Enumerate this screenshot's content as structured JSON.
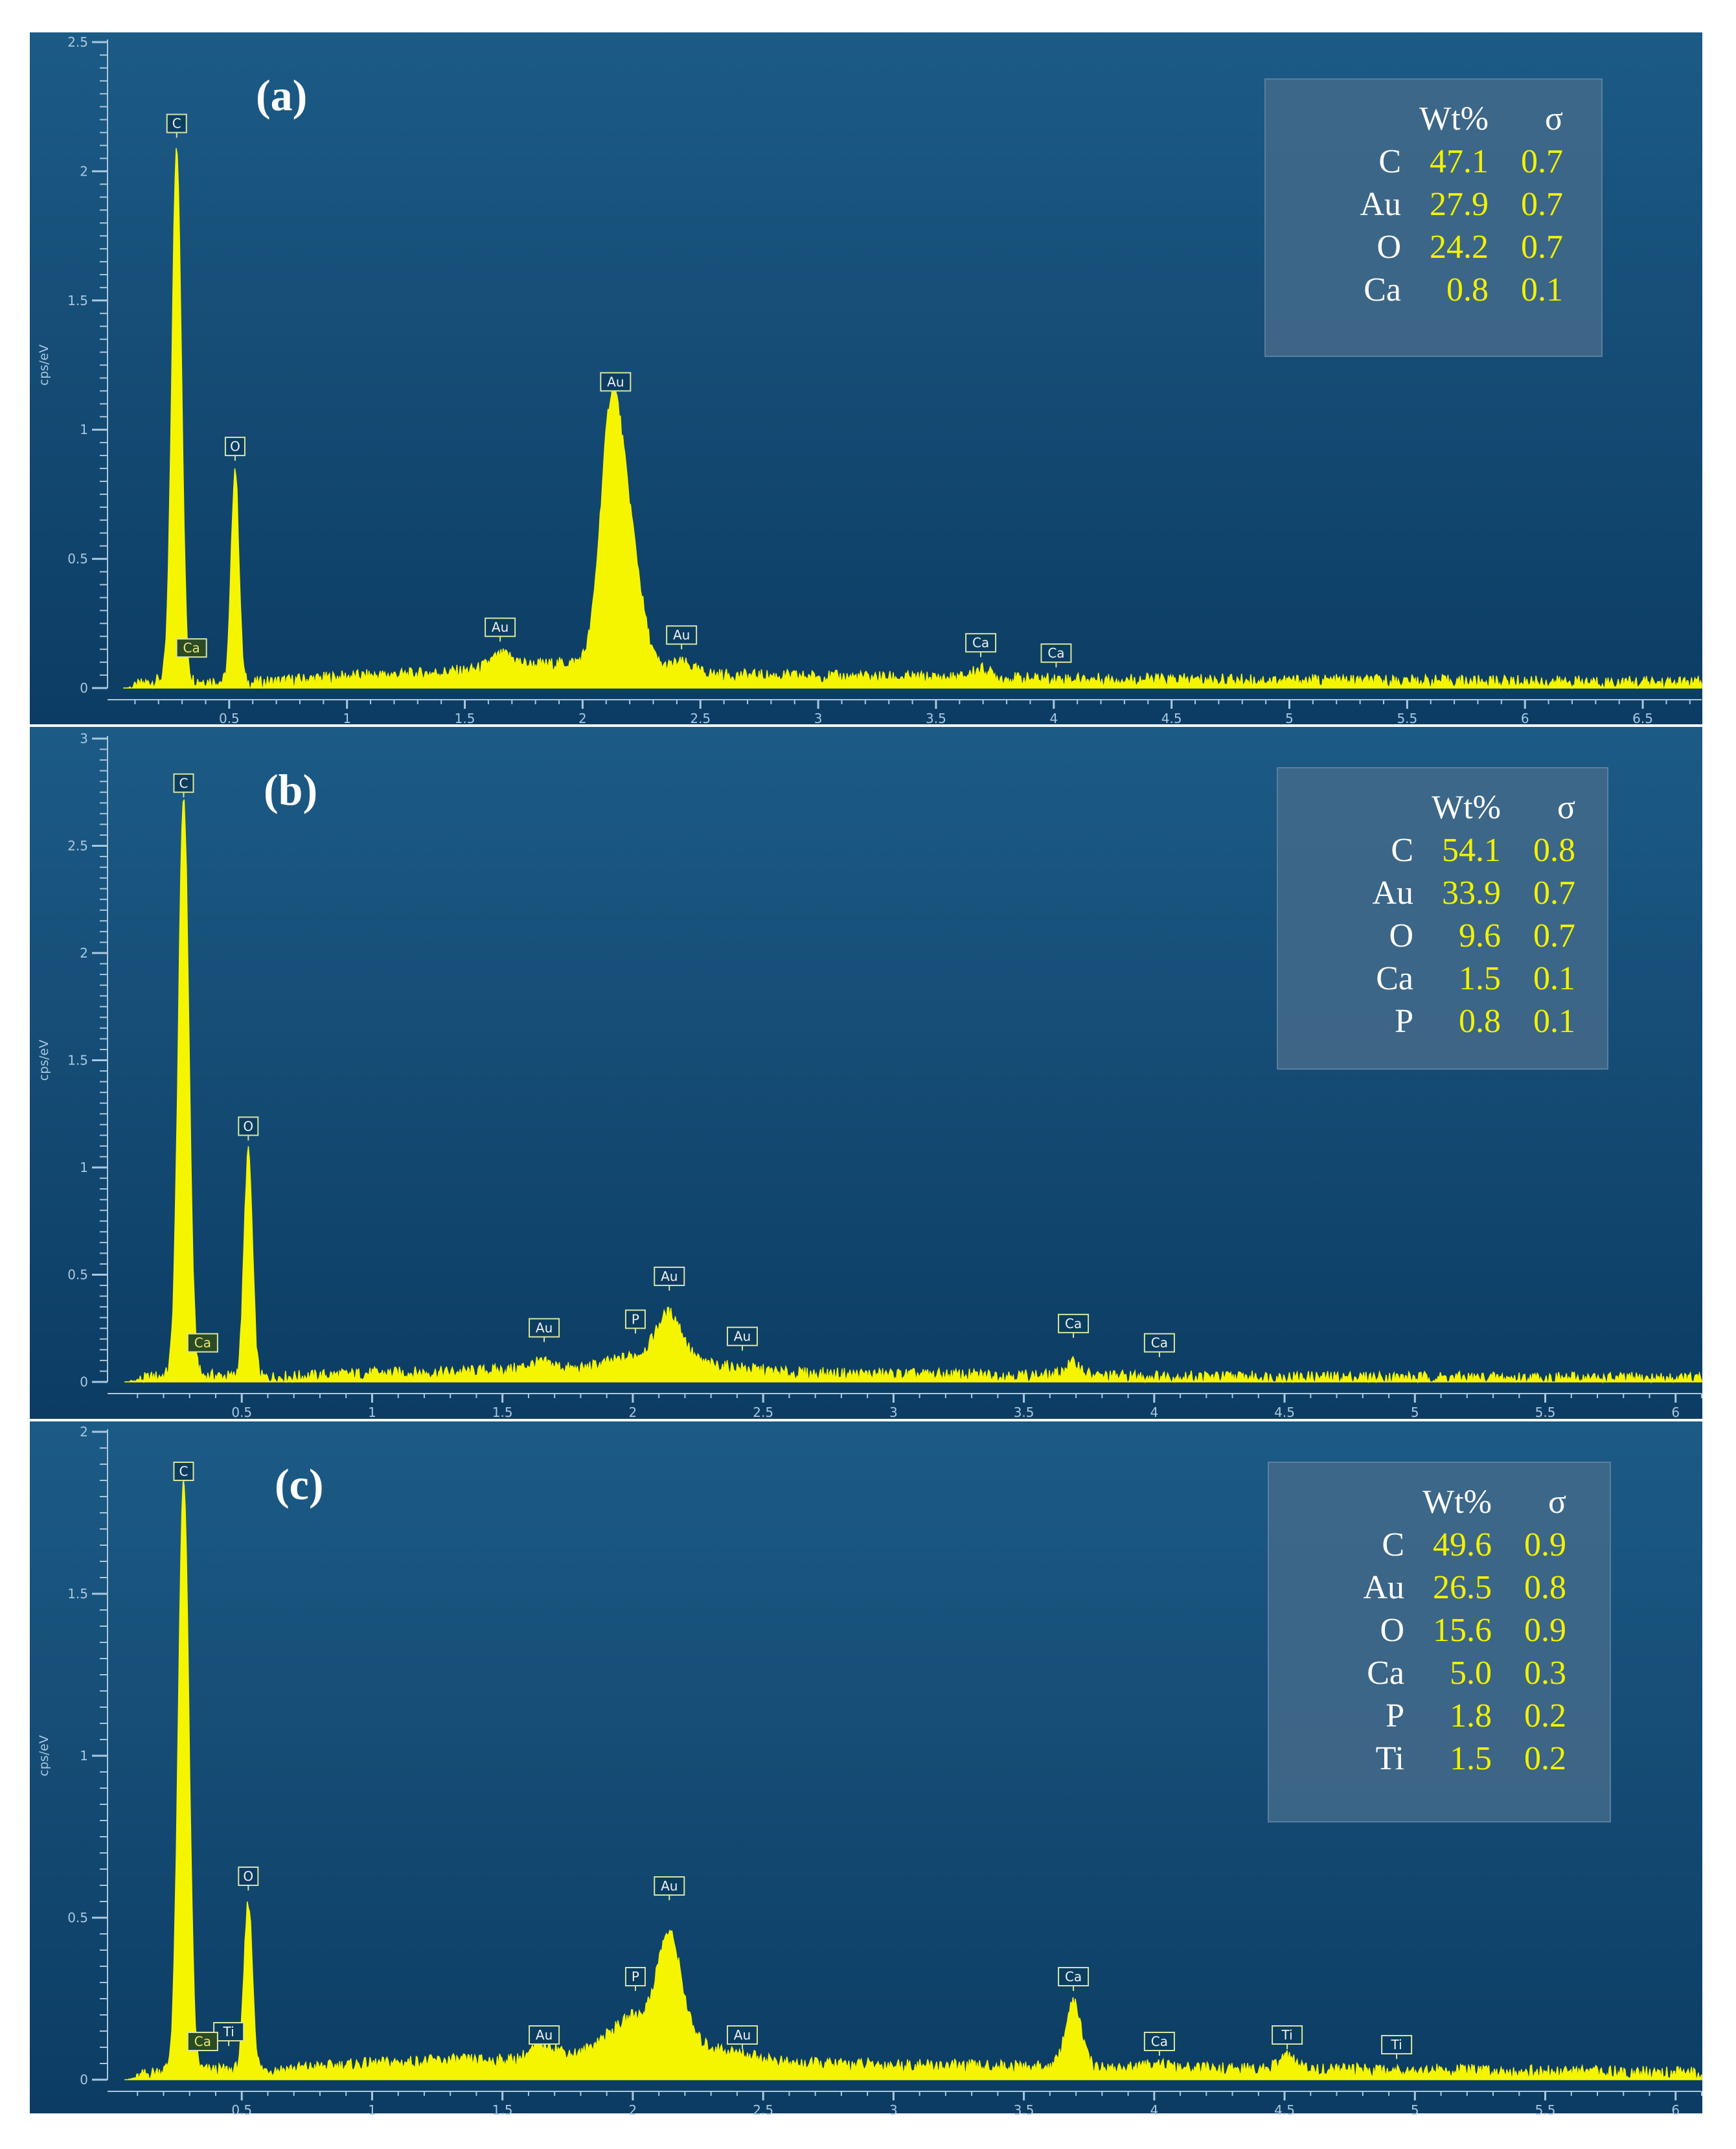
{
  "y_axis_label": "cps/eV",
  "legend_header": {
    "wt": "Wt%",
    "sigma": "σ"
  },
  "chart_data": [
    {
      "type": "line",
      "panel_label": "(a)",
      "xlim": [
        0,
        6.75
      ],
      "ylim": [
        0,
        2.5
      ],
      "x_ticks": [
        "0.5",
        "1",
        "1.5",
        "2",
        "2.5",
        "3",
        "3.5",
        "4",
        "4.5",
        "5",
        "5.5",
        "6",
        "6.5"
      ],
      "y_ticks": [
        "0",
        "0.5",
        "1",
        "1.5",
        "2",
        "2.5"
      ],
      "ylabel": "cps/eV",
      "baseline": [
        [
          0.05,
          0.0
        ],
        [
          0.2,
          0.03
        ],
        [
          0.35,
          0.03
        ],
        [
          0.6,
          0.02
        ],
        [
          1.0,
          0.045
        ],
        [
          1.3,
          0.055
        ],
        [
          1.55,
          0.07
        ],
        [
          1.8,
          0.09
        ],
        [
          2.0,
          0.1
        ],
        [
          2.3,
          0.08
        ],
        [
          2.6,
          0.05
        ],
        [
          3.0,
          0.045
        ],
        [
          3.5,
          0.04
        ],
        [
          4.0,
          0.035
        ],
        [
          5.0,
          0.03
        ],
        [
          6.0,
          0.025
        ],
        [
          6.75,
          0.02
        ]
      ],
      "peaks": [
        {
          "x": 0.277,
          "h": 2.07,
          "w": 0.02
        },
        {
          "x": 0.525,
          "h": 0.83,
          "w": 0.016
        },
        {
          "x": 1.66,
          "h": 0.05,
          "w": 0.05
        },
        {
          "x": 2.12,
          "h": 0.92,
          "w": 0.045
        },
        {
          "x": 2.2,
          "h": 0.45,
          "w": 0.05
        },
        {
          "x": 2.42,
          "h": 0.03,
          "w": 0.04
        },
        {
          "x": 3.69,
          "h": 0.035,
          "w": 0.04
        }
      ],
      "peak_labels": [
        {
          "text": "C",
          "x": 0.277,
          "y": 2.15,
          "type": "above"
        },
        {
          "text": "Ca",
          "x": 0.34,
          "y": 0.12,
          "type": "inline"
        },
        {
          "text": "O",
          "x": 0.525,
          "y": 0.9,
          "type": "above"
        },
        {
          "text": "Au",
          "x": 1.65,
          "y": 0.2,
          "type": "above"
        },
        {
          "text": "Au",
          "x": 2.14,
          "y": 1.15,
          "type": "above"
        },
        {
          "text": "Au",
          "x": 2.42,
          "y": 0.17,
          "type": "above"
        },
        {
          "text": "Ca",
          "x": 3.69,
          "y": 0.14,
          "type": "above"
        },
        {
          "text": "Ca",
          "x": 4.01,
          "y": 0.1,
          "type": "above"
        }
      ],
      "composition": [
        {
          "element": "C",
          "wt": "47.1",
          "sigma": "0.7"
        },
        {
          "element": "Au",
          "wt": "27.9",
          "sigma": "0.7"
        },
        {
          "element": "O",
          "wt": "24.2",
          "sigma": "0.7"
        },
        {
          "element": "Ca",
          "wt": "0.8",
          "sigma": "0.1"
        }
      ]
    },
    {
      "type": "line",
      "panel_label": "(b)",
      "xlim": [
        0,
        6.1
      ],
      "ylim": [
        0,
        3
      ],
      "x_ticks": [
        "0.5",
        "1",
        "1.5",
        "2",
        "2.5",
        "3",
        "3.5",
        "4",
        "4.5",
        "5",
        "5.5",
        "6"
      ],
      "y_ticks": [
        "0",
        "0.5",
        "1",
        "1.5",
        "2",
        "2.5",
        "3"
      ],
      "ylabel": "cps/eV",
      "baseline": [
        [
          0.05,
          0.0
        ],
        [
          0.2,
          0.03
        ],
        [
          0.35,
          0.03
        ],
        [
          0.6,
          0.02
        ],
        [
          1.0,
          0.04
        ],
        [
          1.3,
          0.045
        ],
        [
          1.6,
          0.06
        ],
        [
          1.8,
          0.06
        ],
        [
          2.0,
          0.12
        ],
        [
          2.3,
          0.08
        ],
        [
          2.6,
          0.04
        ],
        [
          3.0,
          0.035
        ],
        [
          3.5,
          0.03
        ],
        [
          4.0,
          0.025
        ],
        [
          5.0,
          0.02
        ],
        [
          6.1,
          0.015
        ]
      ],
      "peaks": [
        {
          "x": 0.277,
          "h": 2.7,
          "w": 0.02
        },
        {
          "x": 0.525,
          "h": 1.05,
          "w": 0.016
        },
        {
          "x": 1.65,
          "h": 0.03,
          "w": 0.05
        },
        {
          "x": 2.14,
          "h": 0.22,
          "w": 0.05
        },
        {
          "x": 3.69,
          "h": 0.06,
          "w": 0.03
        }
      ],
      "peak_labels": [
        {
          "text": "C",
          "x": 0.277,
          "y": 2.75,
          "type": "above"
        },
        {
          "text": "Ca",
          "x": 0.35,
          "y": 0.14,
          "type": "inline"
        },
        {
          "text": "O",
          "x": 0.525,
          "y": 1.15,
          "type": "above"
        },
        {
          "text": "Au",
          "x": 1.66,
          "y": 0.21,
          "type": "above"
        },
        {
          "text": "P",
          "x": 2.01,
          "y": 0.25,
          "type": "above"
        },
        {
          "text": "Au",
          "x": 2.14,
          "y": 0.45,
          "type": "above"
        },
        {
          "text": "Au",
          "x": 2.42,
          "y": 0.17,
          "type": "above"
        },
        {
          "text": "Ca",
          "x": 3.69,
          "y": 0.23,
          "type": "above"
        },
        {
          "text": "Ca",
          "x": 4.02,
          "y": 0.14,
          "type": "above"
        }
      ],
      "composition": [
        {
          "element": "C",
          "wt": "54.1",
          "sigma": "0.8"
        },
        {
          "element": "Au",
          "wt": "33.9",
          "sigma": "0.7"
        },
        {
          "element": "O",
          "wt": "9.6",
          "sigma": "0.7"
        },
        {
          "element": "Ca",
          "wt": "1.5",
          "sigma": "0.1"
        },
        {
          "element": "P",
          "wt": "0.8",
          "sigma": "0.1"
        }
      ]
    },
    {
      "type": "line",
      "panel_label": "(c)",
      "xlim": [
        0,
        6.1
      ],
      "ylim": [
        0,
        2
      ],
      "x_ticks": [
        "0.5",
        "1",
        "1.5",
        "2",
        "2.5",
        "3",
        "3.5",
        "4",
        "4.5",
        "5",
        "5.5",
        "6"
      ],
      "y_ticks": [
        "0",
        "0.5",
        "1",
        "1.5",
        "2"
      ],
      "ylabel": "cps/eV",
      "baseline": [
        [
          0.05,
          0.0
        ],
        [
          0.2,
          0.03
        ],
        [
          0.35,
          0.03
        ],
        [
          0.6,
          0.03
        ],
        [
          1.0,
          0.05
        ],
        [
          1.3,
          0.06
        ],
        [
          1.55,
          0.06
        ],
        [
          1.8,
          0.08
        ],
        [
          2.0,
          0.2
        ],
        [
          2.3,
          0.1
        ],
        [
          2.6,
          0.05
        ],
        [
          3.0,
          0.045
        ],
        [
          3.5,
          0.04
        ],
        [
          4.0,
          0.035
        ],
        [
          5.0,
          0.03
        ],
        [
          6.1,
          0.02
        ]
      ],
      "peaks": [
        {
          "x": 0.277,
          "h": 1.83,
          "w": 0.02
        },
        {
          "x": 0.525,
          "h": 0.52,
          "w": 0.016
        },
        {
          "x": 1.66,
          "h": 0.04,
          "w": 0.05
        },
        {
          "x": 2.14,
          "h": 0.3,
          "w": 0.045
        },
        {
          "x": 3.69,
          "h": 0.2,
          "w": 0.03
        },
        {
          "x": 4.01,
          "h": 0.02,
          "w": 0.03
        },
        {
          "x": 4.51,
          "h": 0.04,
          "w": 0.03
        }
      ],
      "peak_labels": [
        {
          "text": "C",
          "x": 0.277,
          "y": 1.85,
          "type": "above"
        },
        {
          "text": "Ti",
          "x": 0.45,
          "y": 0.12,
          "type": "above"
        },
        {
          "text": "Ca",
          "x": 0.35,
          "y": 0.09,
          "type": "inline"
        },
        {
          "text": "O",
          "x": 0.525,
          "y": 0.6,
          "type": "above"
        },
        {
          "text": "Au",
          "x": 1.66,
          "y": 0.11,
          "type": "above"
        },
        {
          "text": "P",
          "x": 2.01,
          "y": 0.29,
          "type": "above"
        },
        {
          "text": "Au",
          "x": 2.14,
          "y": 0.57,
          "type": "above"
        },
        {
          "text": "Au",
          "x": 2.42,
          "y": 0.11,
          "type": "above"
        },
        {
          "text": "Ca",
          "x": 3.69,
          "y": 0.29,
          "type": "above"
        },
        {
          "text": "Ca",
          "x": 4.02,
          "y": 0.09,
          "type": "above"
        },
        {
          "text": "Ti",
          "x": 4.51,
          "y": 0.11,
          "type": "above"
        },
        {
          "text": "Ti",
          "x": 4.93,
          "y": 0.08,
          "type": "above"
        }
      ],
      "composition": [
        {
          "element": "C",
          "wt": "49.6",
          "sigma": "0.9"
        },
        {
          "element": "Au",
          "wt": "26.5",
          "sigma": "0.8"
        },
        {
          "element": "O",
          "wt": "15.6",
          "sigma": "0.9"
        },
        {
          "element": "Ca",
          "wt": "5.0",
          "sigma": "0.3"
        },
        {
          "element": "P",
          "wt": "1.8",
          "sigma": "0.2"
        },
        {
          "element": "Ti",
          "wt": "1.5",
          "sigma": "0.2"
        }
      ]
    }
  ],
  "colors": {
    "spectrum": "#f5f500",
    "panel_top": "#1c5b86",
    "panel_bottom": "#0c3c63",
    "axis_text": "#aac8e0",
    "legend_value": "#f2f200",
    "legend_text": "#ffffff"
  }
}
